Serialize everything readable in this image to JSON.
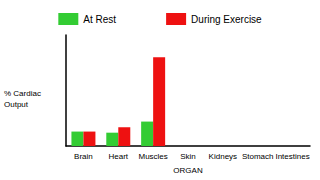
{
  "chart_data": {
    "type": "bar",
    "y_label": "% Cardiac Output",
    "x_label": "ORGAN",
    "categories": [
      "Brain",
      "Heart",
      "Muscles",
      "Skin",
      "Kidneys",
      "Stomach",
      "Intestines"
    ],
    "series": [
      {
        "name": "At Rest",
        "color": "#33cc33",
        "values": [
          13,
          12,
          22,
          null,
          null,
          null,
          null
        ]
      },
      {
        "name": "During Exercise",
        "color": "#ee1111",
        "values": [
          13,
          17,
          80,
          null,
          null,
          null,
          null
        ]
      }
    ],
    "ylim": [
      0,
      100
    ],
    "tick_labels": "x",
    "legend": "top",
    "grid": false
  }
}
